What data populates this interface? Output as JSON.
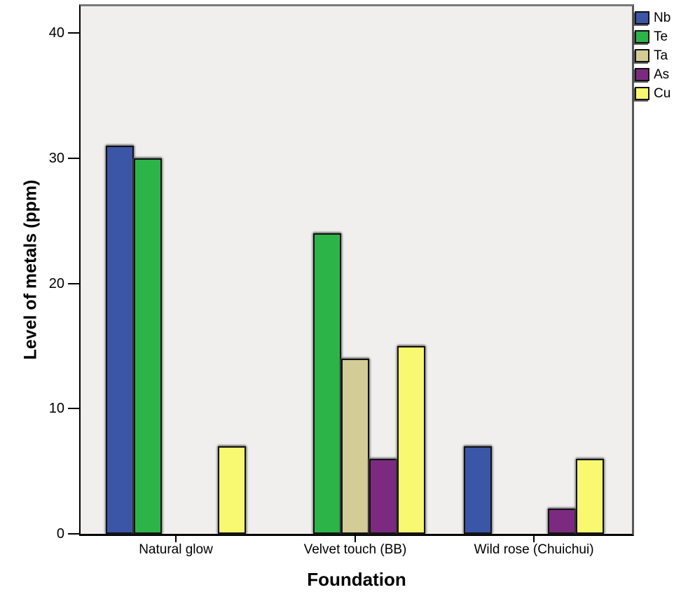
{
  "chart_data": {
    "type": "bar",
    "title": "",
    "xlabel": "Foundation",
    "ylabel": "Level of metals (ppm)",
    "categories": [
      "Natural glow",
      "Velvet touch (BB)",
      "Wild rose (Chuichui)"
    ],
    "series": [
      {
        "name": "Nb",
        "color": "#3b55a7",
        "values": [
          31,
          0,
          7
        ]
      },
      {
        "name": "Te",
        "color": "#2db449",
        "values": [
          30,
          24,
          0
        ]
      },
      {
        "name": "Ta",
        "color": "#d3cc97",
        "values": [
          0,
          14,
          0
        ]
      },
      {
        "name": "As",
        "color": "#7c2a80",
        "values": [
          0,
          6,
          2
        ]
      },
      {
        "name": "Cu",
        "color": "#f9f871",
        "values": [
          7,
          15,
          6
        ]
      }
    ],
    "ylim": [
      0,
      40
    ],
    "yticks": [
      0,
      10,
      20,
      30,
      40
    ],
    "legend_position": "top-right",
    "grid": false,
    "plot_bg_color": "#f0efee"
  }
}
